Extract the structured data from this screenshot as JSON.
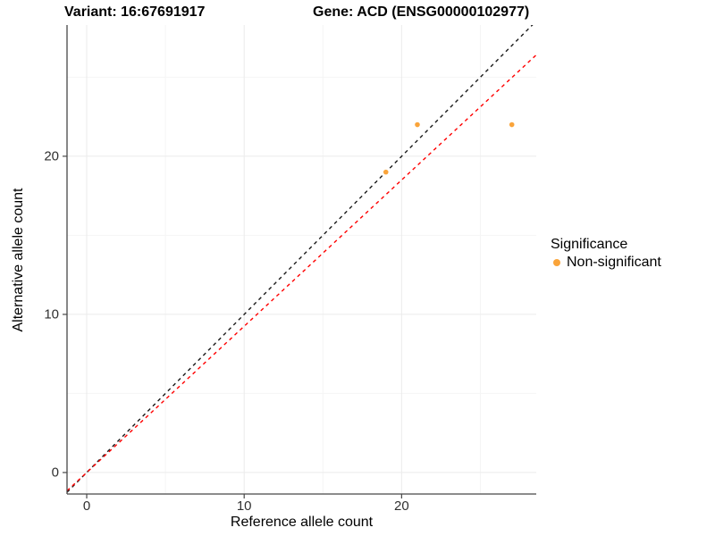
{
  "title": {
    "variant": "Variant: 16:67691917",
    "gene": "Gene: ACD (ENSG00000102977)"
  },
  "axes": {
    "x_label": "Reference allele count",
    "y_label": "Alternative allele count"
  },
  "legend": {
    "title": "Significance",
    "items": [
      {
        "label": "Non-significant",
        "color": "#FAA43A"
      }
    ]
  },
  "colors": {
    "point": "#FAA43A",
    "identity_line": "#1a1a1a",
    "fit_line": "#FF0000",
    "grid_major": "#EBEBEB",
    "grid_minor": "#F5F5F5",
    "axis_line": "#474747",
    "tick_text": "#303030",
    "background": "#FFFFFF"
  },
  "chart_data": {
    "type": "scatter",
    "title": "Variant: 16:67691917    Gene: ACD (ENSG00000102977)",
    "xlabel": "Reference allele count",
    "ylabel": "Alternative allele count",
    "xlim": [
      -1.25,
      28.55
    ],
    "ylim": [
      -1.36,
      28.3
    ],
    "x_ticks": [
      0,
      10,
      20
    ],
    "y_ticks": [
      0,
      10,
      20
    ],
    "x_minor_ticks": [
      5,
      15,
      25
    ],
    "y_minor_ticks": [
      5,
      15,
      25
    ],
    "grid": true,
    "legend_position": "right",
    "series": [
      {
        "name": "Non-significant",
        "color": "#FAA43A",
        "point_radius": 2.8,
        "points": [
          [
            19,
            19
          ],
          [
            21,
            22
          ],
          [
            27,
            22
          ]
        ]
      }
    ],
    "reference_lines": [
      {
        "name": "identity",
        "slope": 1,
        "intercept": 0,
        "color": "#1a1a1a",
        "dashed": true
      },
      {
        "name": "fit",
        "slope": 0.925,
        "intercept": 0,
        "color": "#FF0000",
        "dashed": true
      }
    ]
  }
}
